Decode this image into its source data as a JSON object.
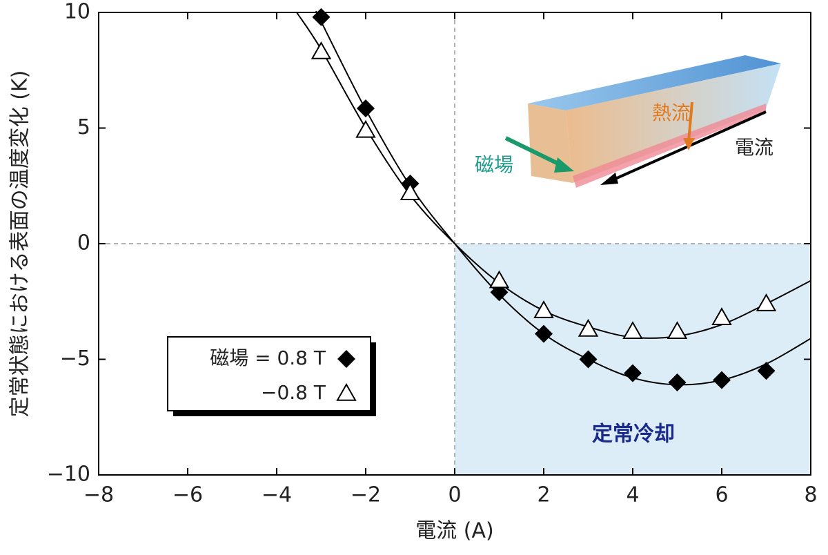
{
  "chart_data": {
    "type": "scatter",
    "y_label": "定常状態における表面の温度変化 (K)",
    "x_label": "電流 (A)",
    "xlim": [
      -8,
      8
    ],
    "ylim": [
      -10,
      10
    ],
    "xticks": [
      {
        "value": -8,
        "label": "−8"
      },
      {
        "value": -6,
        "label": "−6"
      },
      {
        "value": -4,
        "label": "−4"
      },
      {
        "value": -2,
        "label": "−2"
      },
      0,
      2,
      4,
      6,
      8
    ],
    "yticks": [
      10,
      5,
      0,
      {
        "value": -5,
        "label": "−5"
      },
      {
        "value": -10,
        "label": "−10"
      }
    ],
    "zero_lines": true,
    "series": [
      {
        "name": "磁場 = 0.8 T",
        "marker": "diamond",
        "color": "#000000",
        "x": [
          -3,
          -2,
          -1,
          1,
          2,
          3,
          4,
          5,
          6,
          7
        ],
        "values": [
          9.8,
          5.85,
          2.6,
          -2.1,
          -3.9,
          -5.0,
          -5.6,
          -6.0,
          -5.9,
          -5.5
        ]
      },
      {
        "name": "−0.8 T",
        "marker": "triangle",
        "color": "#000000",
        "x": [
          -3,
          -2,
          -1,
          1,
          2,
          3,
          4,
          5,
          6,
          7
        ],
        "values": [
          8.3,
          4.9,
          2.2,
          -1.6,
          -2.9,
          -3.7,
          -3.8,
          -3.8,
          -3.2,
          -2.6
        ]
      }
    ],
    "fits": [
      {
        "x": [
          -3.1,
          -3,
          -2,
          -1,
          0,
          1,
          2,
          3,
          4,
          5,
          6,
          7,
          8
        ],
        "values": [
          10,
          9.6,
          5.8,
          2.5,
          0,
          -2.2,
          -3.9,
          -5.0,
          -5.8,
          -6.1,
          -5.9,
          -5.2,
          -4.1
        ]
      },
      {
        "x": [
          -3.55,
          -3,
          -2,
          -1,
          0,
          1,
          2,
          3,
          4,
          5,
          6,
          7,
          8
        ],
        "values": [
          10,
          8.4,
          5.0,
          2.1,
          0,
          -1.7,
          -2.9,
          -3.6,
          -4.05,
          -4.0,
          -3.5,
          -2.6,
          -1.6
        ]
      }
    ],
    "highlight": {
      "xlim": [
        0,
        8
      ],
      "ylim": [
        -10,
        0
      ],
      "color": "#dcedf8",
      "label": "定常冷却"
    },
    "inset_labels": {
      "heat_flow": "熱流",
      "current": "電流",
      "field": "磁場"
    }
  }
}
